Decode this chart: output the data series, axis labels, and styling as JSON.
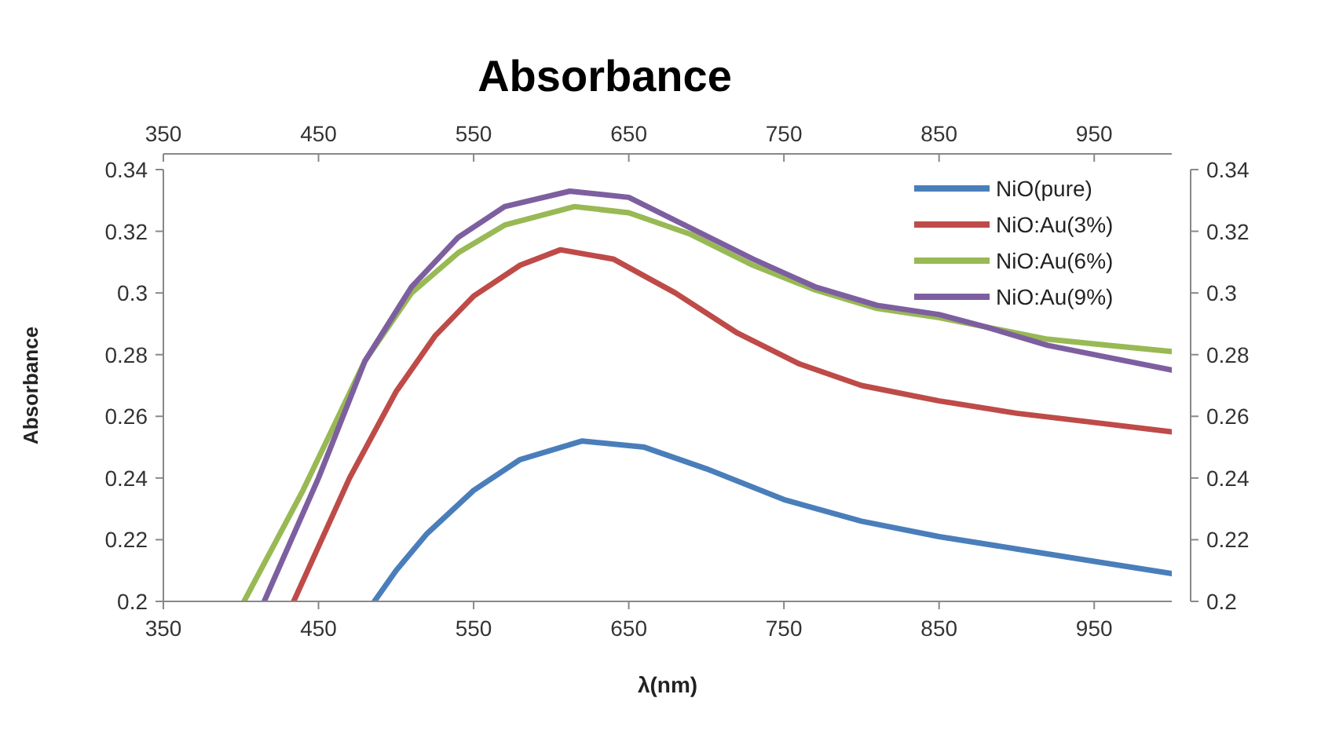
{
  "chart_data": {
    "type": "line",
    "title": "Absorbance",
    "xlabel": "λ(nm)",
    "ylabel": "Absorbance",
    "xlim": [
      350,
      1000
    ],
    "xticks": [
      350,
      450,
      550,
      650,
      750,
      850,
      950
    ],
    "x2lim": [
      350,
      1000
    ],
    "x2ticks": [
      350,
      450,
      550,
      650,
      750,
      850,
      950
    ],
    "ylim": [
      0.2,
      0.34
    ],
    "yticks": [
      0.2,
      0.22,
      0.24,
      0.26,
      0.28,
      0.3,
      0.32,
      0.34
    ],
    "y2lim": [
      0.2,
      0.34
    ],
    "y2ticks": [
      0.2,
      0.22,
      0.24,
      0.26,
      0.28,
      0.3,
      0.32,
      0.34
    ],
    "grid": false,
    "legend": "top right",
    "marker": "none",
    "line_style": "solid",
    "series": [
      {
        "name": "NiO(pure)",
        "color": "#4a7ebb",
        "x": [
          486,
          500,
          520,
          550,
          580,
          620,
          660,
          700,
          750,
          800,
          850,
          900,
          950,
          1000
        ],
        "values": [
          0.2,
          0.21,
          0.222,
          0.236,
          0.246,
          0.252,
          0.25,
          0.243,
          0.233,
          0.226,
          0.221,
          0.217,
          0.213,
          0.209
        ]
      },
      {
        "name": "NiO:Au(3%)",
        "color": "#be4b48",
        "x": [
          434,
          470,
          500,
          525,
          550,
          580,
          606,
          640,
          680,
          720,
          760,
          800,
          850,
          900,
          950,
          1000
        ],
        "values": [
          0.2,
          0.24,
          0.268,
          0.286,
          0.299,
          0.309,
          0.314,
          0.311,
          0.3,
          0.287,
          0.277,
          0.27,
          0.265,
          0.261,
          0.258,
          0.255
        ]
      },
      {
        "name": "NiO:Au(6%)",
        "color": "#98b954",
        "x": [
          402,
          440,
          480,
          510,
          540,
          570,
          615,
          650,
          690,
          730,
          770,
          810,
          850,
          880,
          920,
          960,
          1000
        ],
        "values": [
          0.2,
          0.236,
          0.278,
          0.3,
          0.313,
          0.322,
          0.328,
          0.326,
          0.319,
          0.309,
          0.301,
          0.295,
          0.292,
          0.289,
          0.285,
          0.283,
          0.281
        ]
      },
      {
        "name": "NiO:Au(9%)",
        "color": "#7d5fa0",
        "x": [
          415,
          450,
          480,
          510,
          540,
          570,
          612,
          650,
          690,
          730,
          770,
          810,
          850,
          880,
          920,
          960,
          1000
        ],
        "values": [
          0.2,
          0.24,
          0.278,
          0.302,
          0.318,
          0.328,
          0.333,
          0.331,
          0.321,
          0.311,
          0.302,
          0.296,
          0.293,
          0.289,
          0.283,
          0.279,
          0.275
        ]
      }
    ]
  }
}
